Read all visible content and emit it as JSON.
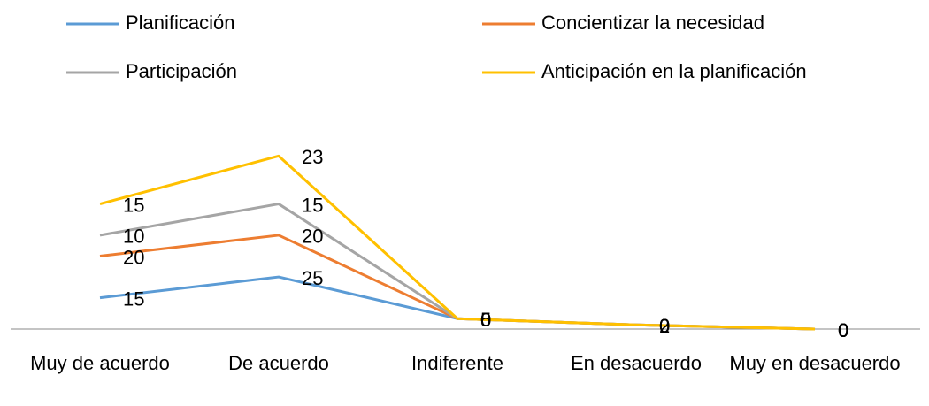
{
  "chart_data": {
    "type": "line",
    "stacked": true,
    "legend": "top",
    "categories": [
      "Muy de acuerdo",
      "De acuerdo",
      "Indiferente",
      "En desacuerdo",
      "Muy en desacuerdo"
    ],
    "series": [
      {
        "name": "Planificación",
        "color": "#5b9bd5",
        "values": [
          15,
          25,
          5,
          2,
          0
        ]
      },
      {
        "name": "Concientizar la necesidad",
        "color": "#ed7d31",
        "values": [
          20,
          20,
          0,
          0,
          0
        ]
      },
      {
        "name": "Participación",
        "color": "#a5a5a5",
        "values": [
          10,
          15,
          0,
          0,
          0
        ]
      },
      {
        "name": "Anticipación en la planificación",
        "color": "#ffc000",
        "values": [
          15,
          23,
          0,
          0,
          0
        ]
      }
    ],
    "ylim": [
      0,
      140
    ]
  }
}
